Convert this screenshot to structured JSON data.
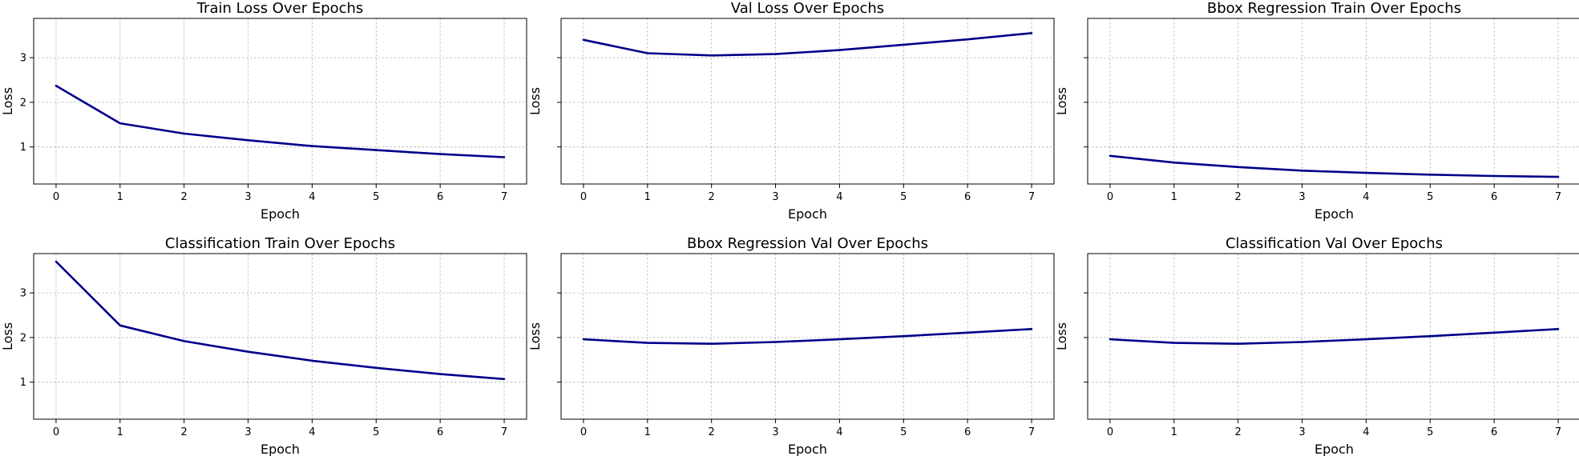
{
  "chart_data": [
    {
      "type": "line",
      "title": "Train Loss Over Epochs",
      "xlabel": "Epoch",
      "ylabel": "Loss",
      "x": [
        0,
        1,
        2,
        3,
        4,
        5,
        6,
        7
      ],
      "series": [
        {
          "values": [
            2.37,
            1.53,
            1.3,
            1.15,
            1.02,
            0.93,
            0.84,
            0.77
          ]
        }
      ],
      "xlim": [
        -0.35,
        7.35
      ],
      "ylim": [
        0.17,
        3.88
      ],
      "xticks": [
        "0",
        "1",
        "2",
        "3",
        "4",
        "5",
        "6",
        "7"
      ],
      "yticks": [
        1,
        2,
        3
      ],
      "ytick_labels": [
        "1",
        "2",
        "3"
      ],
      "grid": true,
      "color": "#00008B"
    },
    {
      "type": "line",
      "title": "Val Loss Over Epochs",
      "xlabel": "Epoch",
      "ylabel": "Loss",
      "x": [
        0,
        1,
        2,
        3,
        4,
        5,
        6,
        7
      ],
      "series": [
        {
          "values": [
            3.4,
            3.1,
            3.05,
            3.08,
            3.17,
            3.29,
            3.41,
            3.55
          ]
        }
      ],
      "xlim": [
        -0.35,
        7.35
      ],
      "ylim": [
        0.17,
        3.88
      ],
      "xticks": [
        "0",
        "1",
        "2",
        "3",
        "4",
        "5",
        "6",
        "7"
      ],
      "yticks": [
        1,
        2,
        3
      ],
      "ytick_labels": [
        "",
        "",
        ""
      ],
      "grid": true,
      "color": "#00008B"
    },
    {
      "type": "line",
      "title": "Bbox Regression Train Over Epochs",
      "xlabel": "Epoch",
      "ylabel": "Loss",
      "x": [
        0,
        1,
        2,
        3,
        4,
        5,
        6,
        7
      ],
      "series": [
        {
          "values": [
            0.8,
            0.65,
            0.55,
            0.47,
            0.42,
            0.38,
            0.35,
            0.33
          ]
        }
      ],
      "xlim": [
        -0.35,
        7.35
      ],
      "ylim": [
        0.17,
        3.88
      ],
      "xticks": [
        "0",
        "1",
        "2",
        "3",
        "4",
        "5",
        "6",
        "7"
      ],
      "yticks": [
        1,
        2,
        3
      ],
      "ytick_labels": [
        "",
        "",
        ""
      ],
      "grid": true,
      "color": "#00008B"
    },
    {
      "type": "line",
      "title": "Classification Train Over Epochs",
      "xlabel": "Epoch",
      "ylabel": "Loss",
      "x": [
        0,
        1,
        2,
        3,
        4,
        5,
        6,
        7
      ],
      "series": [
        {
          "values": [
            3.7,
            2.27,
            1.92,
            1.68,
            1.48,
            1.32,
            1.18,
            1.07
          ]
        }
      ],
      "xlim": [
        -0.35,
        7.35
      ],
      "ylim": [
        0.17,
        3.88
      ],
      "xticks": [
        "0",
        "1",
        "2",
        "3",
        "4",
        "5",
        "6",
        "7"
      ],
      "yticks": [
        1,
        2,
        3
      ],
      "ytick_labels": [
        "1",
        "2",
        "3"
      ],
      "grid": true,
      "color": "#00008B"
    },
    {
      "type": "line",
      "title": "Bbox Regression Val Over Epochs",
      "xlabel": "Epoch",
      "ylabel": "Loss",
      "x": [
        0,
        1,
        2,
        3,
        4,
        5,
        6,
        7
      ],
      "series": [
        {
          "values": [
            1.96,
            1.88,
            1.86,
            1.9,
            1.96,
            2.03,
            2.11,
            2.19
          ]
        }
      ],
      "xlim": [
        -0.35,
        7.35
      ],
      "ylim": [
        0.17,
        3.88
      ],
      "xticks": [
        "0",
        "1",
        "2",
        "3",
        "4",
        "5",
        "6",
        "7"
      ],
      "yticks": [
        1,
        2,
        3
      ],
      "ytick_labels": [
        "",
        "",
        ""
      ],
      "grid": true,
      "color": "#00008B"
    },
    {
      "type": "line",
      "title": "Classification Val Over Epochs",
      "xlabel": "Epoch",
      "ylabel": "Loss",
      "x": [
        0,
        1,
        2,
        3,
        4,
        5,
        6,
        7
      ],
      "series": [
        {
          "values": [
            1.96,
            1.88,
            1.86,
            1.9,
            1.96,
            2.03,
            2.11,
            2.19
          ]
        }
      ],
      "xlim": [
        -0.35,
        7.35
      ],
      "ylim": [
        0.17,
        3.88
      ],
      "xticks": [
        "0",
        "1",
        "2",
        "3",
        "4",
        "5",
        "6",
        "7"
      ],
      "yticks": [
        1,
        2,
        3
      ],
      "ytick_labels": [
        "",
        "",
        ""
      ],
      "grid": true,
      "color": "#00008B"
    }
  ]
}
